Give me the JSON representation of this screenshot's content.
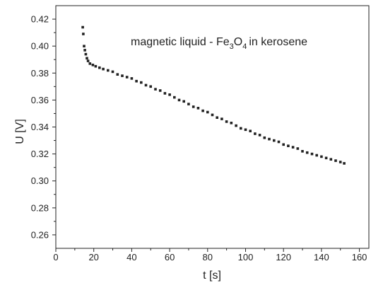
{
  "chart_data": {
    "type": "scatter",
    "title": "",
    "annotation": {
      "prefix": "magnetic liquid - Fe",
      "sub1": "3",
      "mid": "O",
      "sub2": "4",
      "suffix": "in kerosene"
    },
    "xlabel": "t [s]",
    "ylabel": "U [V]",
    "xlim": [
      0,
      165
    ],
    "ylim": [
      0.25,
      0.43
    ],
    "xticks": [
      0,
      20,
      40,
      60,
      80,
      100,
      120,
      140,
      160
    ],
    "xtick_labels": [
      "0",
      "20",
      "40",
      "60",
      "80",
      "100",
      "120",
      "140",
      "160"
    ],
    "yticks": [
      0.26,
      0.28,
      0.3,
      0.32,
      0.34,
      0.36,
      0.38,
      0.4,
      0.42
    ],
    "ytick_labels": [
      "0.26",
      "0.28",
      "0.30",
      "0.32",
      "0.34",
      "0.36",
      "0.38",
      "0.40",
      "0.42"
    ],
    "grid": false,
    "marker_color": "#222222",
    "series": [
      {
        "x": [
          14.2,
          14.5,
          14.9,
          15.3,
          15.8,
          16.4,
          17.0,
          18.0,
          19.5,
          21.0,
          23.0,
          25.0,
          27.5,
          30.0,
          32.5,
          35.0,
          37.5,
          40.0,
          42.5,
          45.0,
          47.5,
          50.0,
          52.5,
          55.0,
          57.5,
          60.0,
          62.5,
          65.0,
          67.5,
          70.0,
          72.5,
          75.0,
          77.5,
          80.0,
          82.5,
          85.0,
          87.5,
          90.0,
          92.5,
          95.0,
          97.5,
          100.0,
          102.5,
          105.0,
          107.5,
          110.0,
          112.5,
          115.0,
          117.5,
          120.0,
          122.5,
          125.0,
          127.5,
          130.0,
          132.5,
          135.0,
          137.5,
          140.0,
          142.5,
          145.0,
          147.5,
          150.0,
          152.0
        ],
        "y": [
          0.414,
          0.409,
          0.4,
          0.397,
          0.394,
          0.391,
          0.389,
          0.387,
          0.386,
          0.385,
          0.384,
          0.383,
          0.382,
          0.381,
          0.379,
          0.378,
          0.377,
          0.376,
          0.374,
          0.373,
          0.371,
          0.37,
          0.368,
          0.367,
          0.365,
          0.364,
          0.362,
          0.36,
          0.359,
          0.357,
          0.355,
          0.354,
          0.352,
          0.351,
          0.349,
          0.347,
          0.346,
          0.344,
          0.343,
          0.341,
          0.339,
          0.338,
          0.337,
          0.335,
          0.334,
          0.332,
          0.331,
          0.33,
          0.329,
          0.327,
          0.326,
          0.325,
          0.324,
          0.322,
          0.321,
          0.32,
          0.319,
          0.318,
          0.317,
          0.316,
          0.315,
          0.314,
          0.313
        ]
      }
    ]
  }
}
